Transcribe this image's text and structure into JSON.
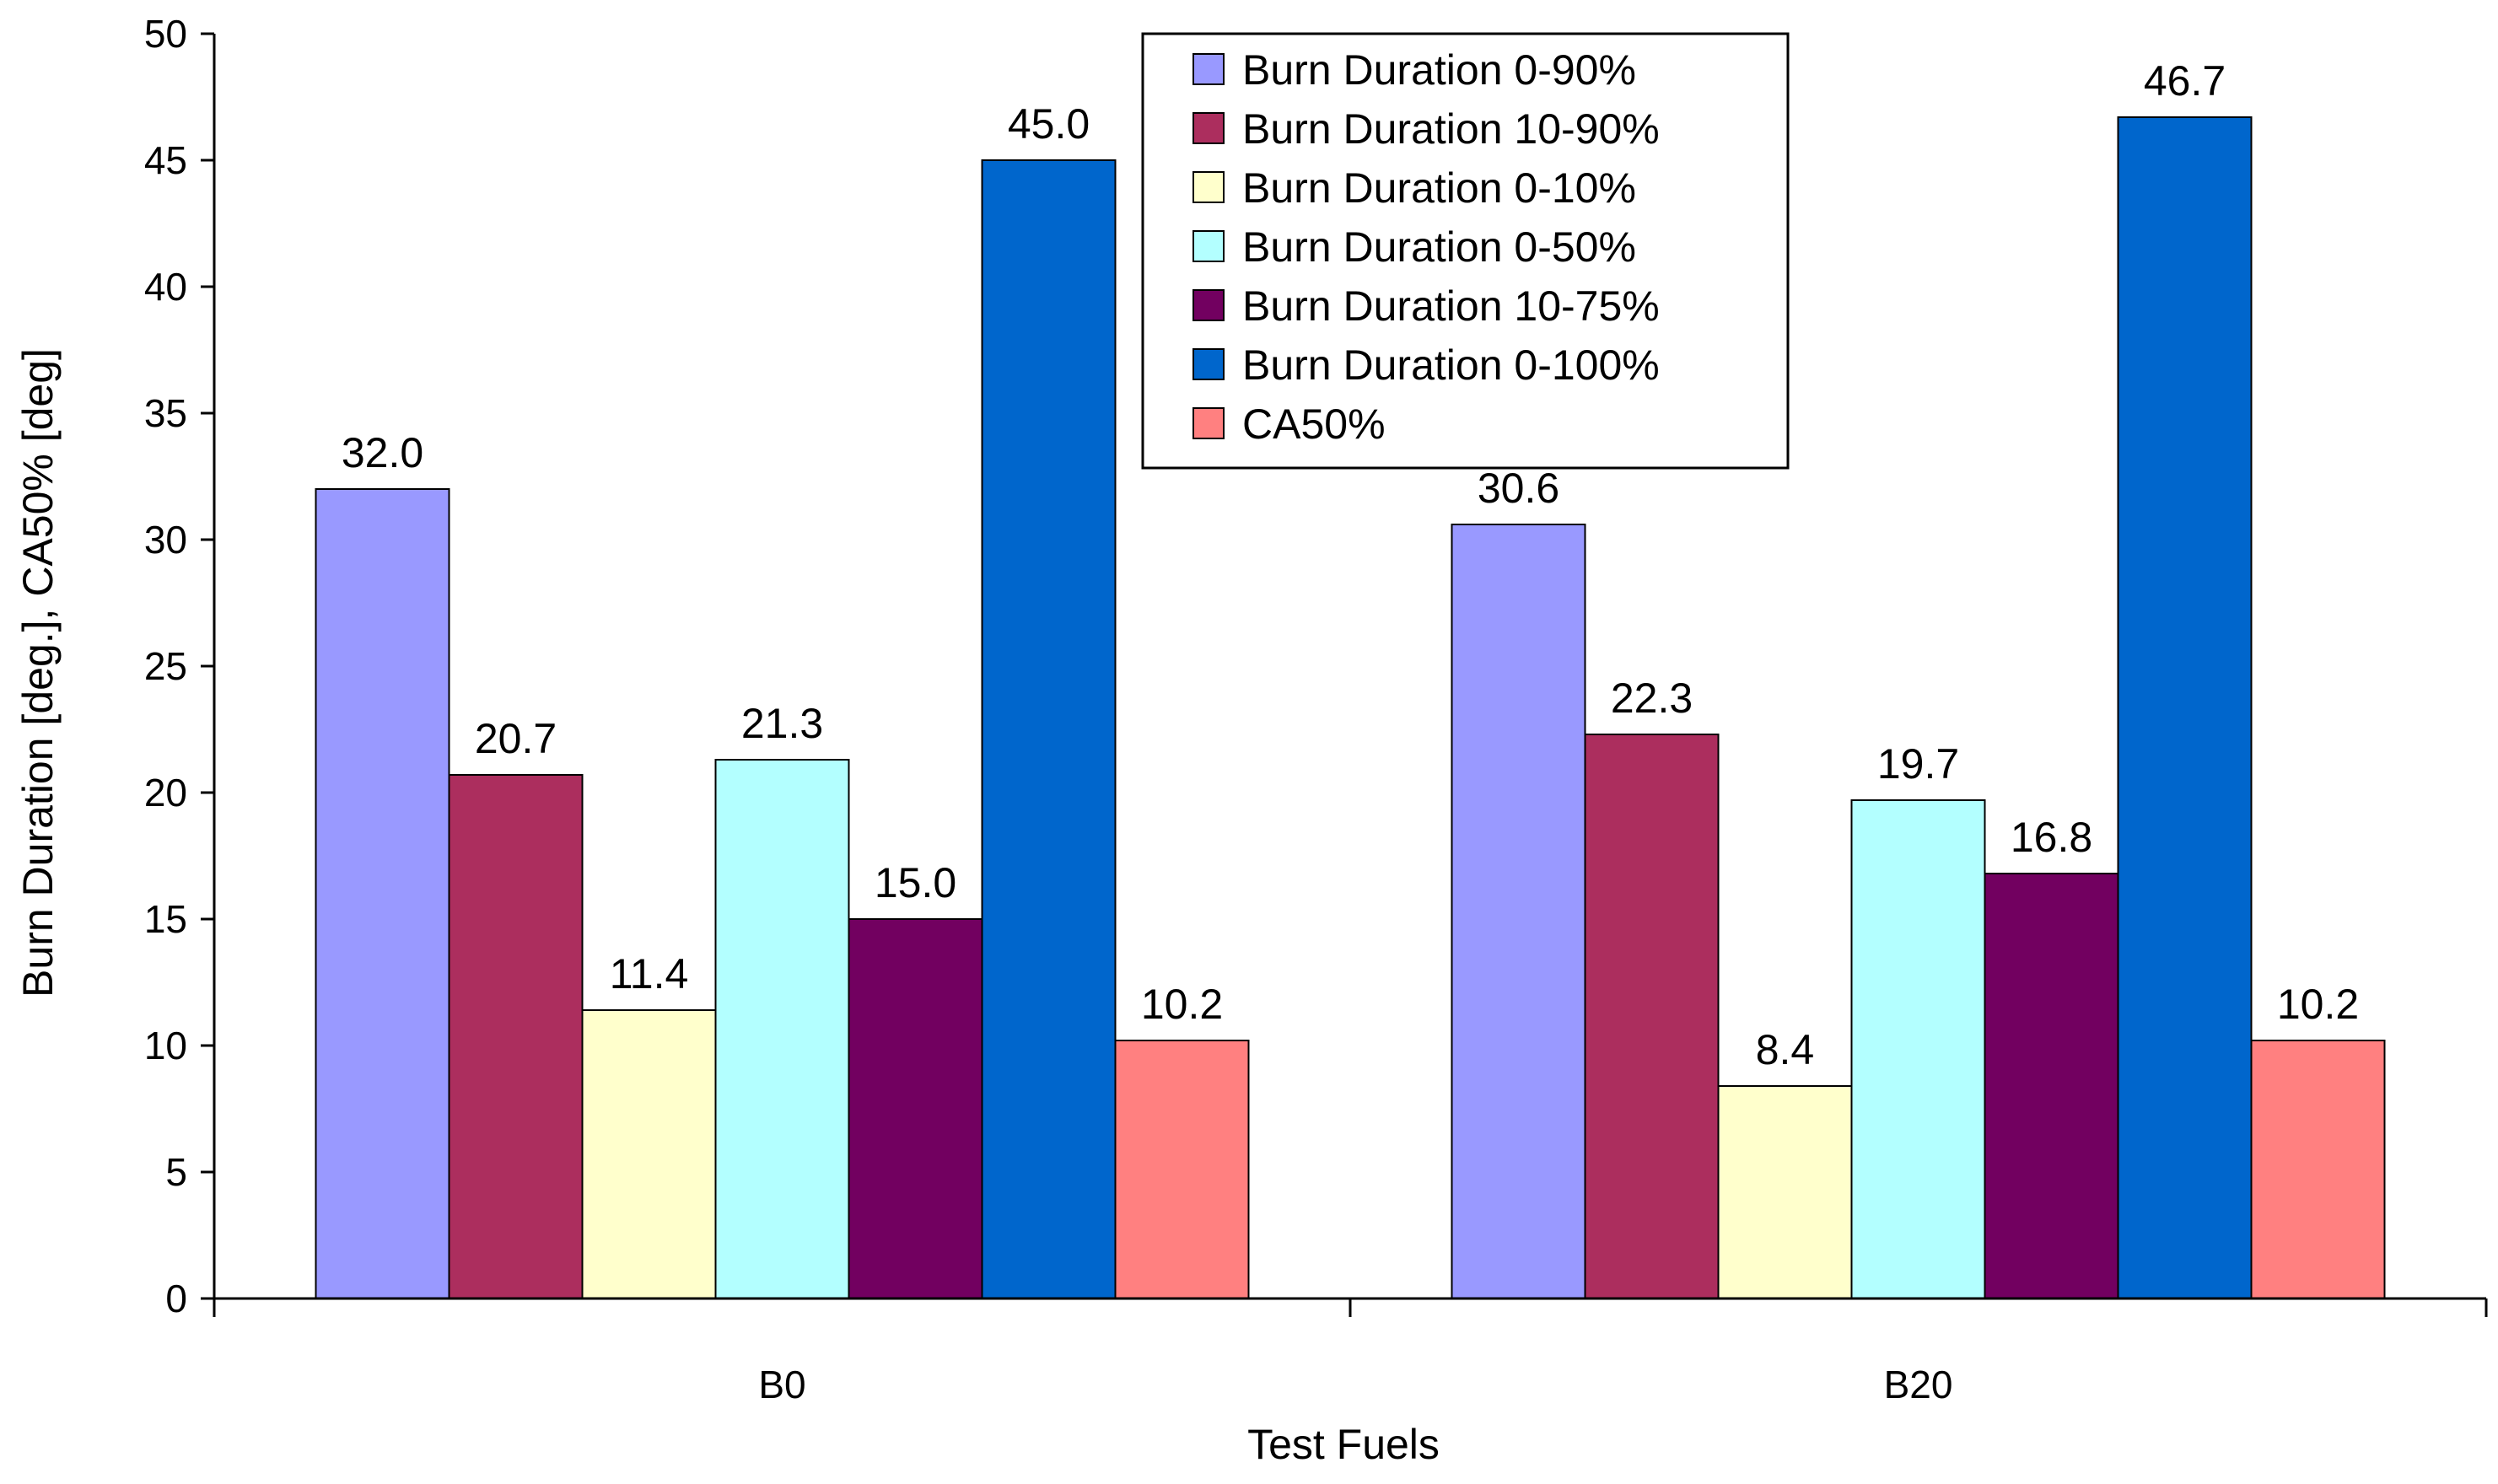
{
  "chart_data": {
    "type": "bar",
    "title": "",
    "xlabel": "Test Fuels",
    "ylabel": "Burn Duration [deg.], CA50% [deg]",
    "categories": [
      "B0",
      "B20"
    ],
    "ylim": [
      0,
      50
    ],
    "yticks": [
      0,
      5,
      10,
      15,
      20,
      25,
      30,
      35,
      40,
      45,
      50
    ],
    "grid": false,
    "legend_position": "top-center",
    "series": [
      {
        "name": "Burn Duration 0-90%",
        "color": "#9999FF",
        "values": [
          32.0,
          30.6
        ],
        "labels": [
          "32.0",
          "30.6"
        ]
      },
      {
        "name": "Burn Duration 10-90%",
        "color": "#AC2E5E",
        "values": [
          20.7,
          22.3
        ],
        "labels": [
          "20.7",
          "22.3"
        ]
      },
      {
        "name": "Burn Duration 0-10%",
        "color": "#FFFFCC",
        "values": [
          11.4,
          8.4
        ],
        "labels": [
          "11.4",
          "8.4"
        ]
      },
      {
        "name": "Burn Duration 0-50%",
        "color": "#B3FFFF",
        "values": [
          21.3,
          19.7
        ],
        "labels": [
          "21.3",
          "19.7"
        ]
      },
      {
        "name": "Burn Duration 10-75%",
        "color": "#720060",
        "values": [
          15.0,
          16.8
        ],
        "labels": [
          "15.0",
          "16.8"
        ]
      },
      {
        "name": "Burn Duration 0-100%",
        "color": "#0066CC",
        "values": [
          45.0,
          46.7
        ],
        "labels": [
          "45.0",
          "46.7"
        ]
      },
      {
        "name": "CA50%",
        "color": "#FF8080",
        "values": [
          10.2,
          10.2
        ],
        "labels": [
          "10.2",
          "10.2"
        ]
      }
    ]
  }
}
